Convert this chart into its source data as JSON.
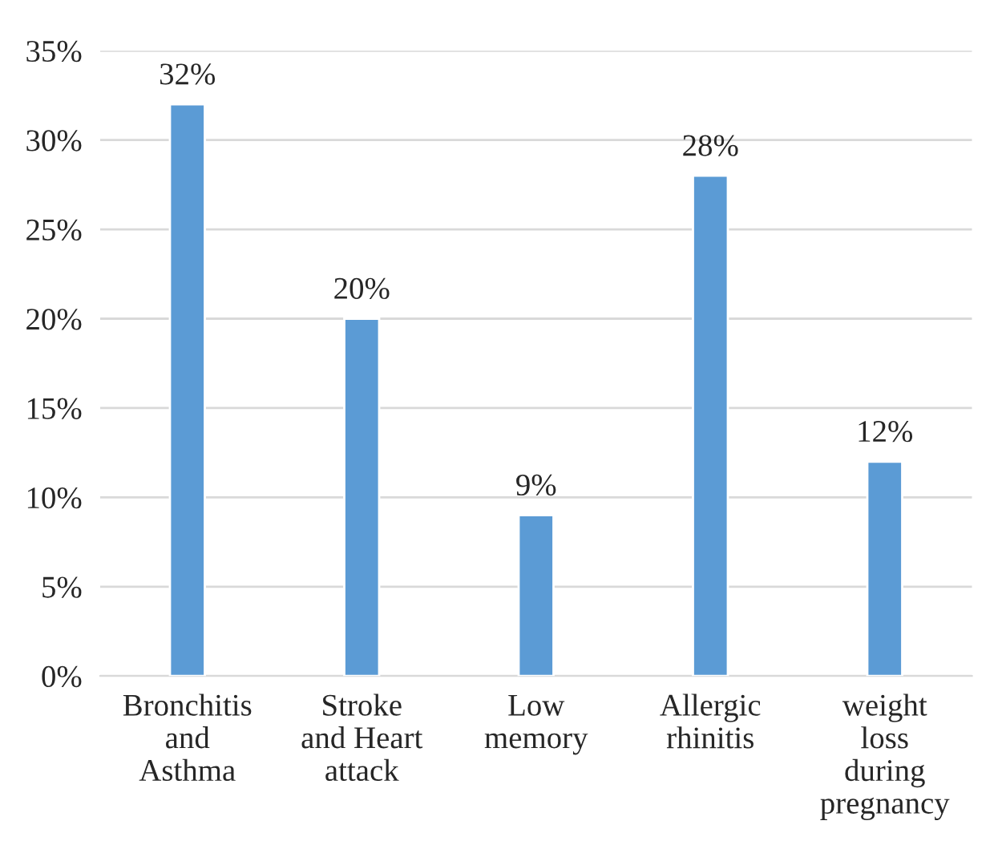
{
  "chart_data": {
    "type": "bar",
    "categories": [
      "Bronchitis\nand\nAsthma",
      "Stroke\nand Heart\nattack",
      "Low\nmemory",
      "Allergic\nrhinitis",
      "weight\nloss\nduring\npregnancy"
    ],
    "values": [
      32,
      20,
      9,
      28,
      12
    ],
    "value_labels": [
      "32%",
      "20%",
      "9%",
      "28%",
      "12%"
    ],
    "color": "#5b9bd5",
    "ylim": [
      0,
      35
    ],
    "yticks": [
      {
        "value": 0,
        "label": "0%"
      },
      {
        "value": 5,
        "label": "5%"
      },
      {
        "value": 10,
        "label": "10%"
      },
      {
        "value": 15,
        "label": "15%"
      },
      {
        "value": 20,
        "label": "20%"
      },
      {
        "value": 25,
        "label": "25%"
      },
      {
        "value": 30,
        "label": "30%"
      },
      {
        "value": 35,
        "label": "35%"
      }
    ],
    "grid": "y",
    "legend": false
  }
}
